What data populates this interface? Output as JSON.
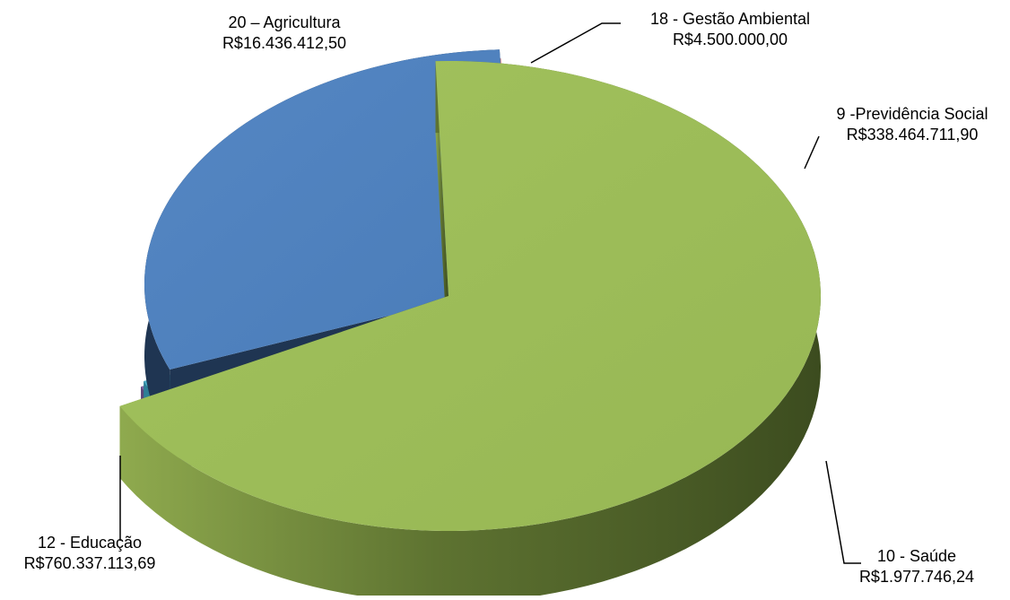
{
  "chart_data": {
    "type": "pie",
    "title": "",
    "style": "3d-exploded",
    "slices": [
      {
        "name": "12 - Educação",
        "value_label": "R$760.337.113,69",
        "value": 760337113.69,
        "color": "#9BBB59"
      },
      {
        "name": "20 – Agricultura",
        "value_label": "R$16.436.412,50",
        "value": 16436412.5,
        "color": "#8064A2"
      },
      {
        "name": "18 - Gestão Ambiental",
        "value_label": "R$4.500.000,00",
        "value": 4500000.0,
        "color": "#4BACC6"
      },
      {
        "name": "9 -Previdência Social",
        "value_label": "R$338.464.711,90",
        "value": 338464711.9,
        "color": "#4F81BD"
      },
      {
        "name": "10 - Saúde",
        "value_label": "R$1.977.746,24",
        "value": 1977746.24,
        "color": "#C0504D"
      }
    ]
  }
}
